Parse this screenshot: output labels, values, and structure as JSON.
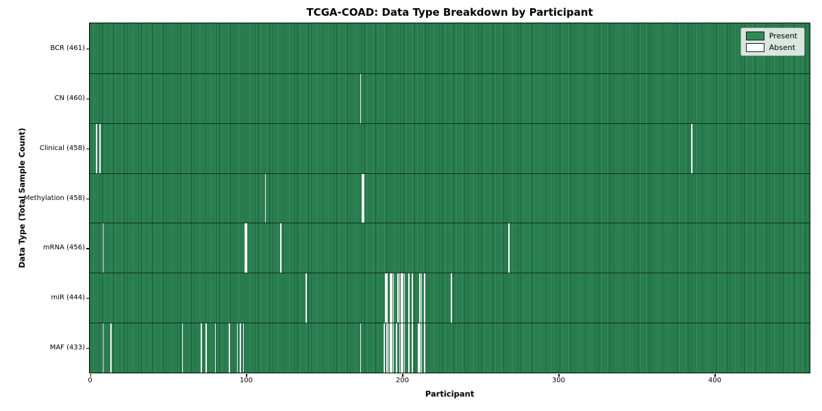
{
  "chart_data": {
    "type": "heatmap",
    "title": "TCGA-COAD: Data Type Breakdown by Participant",
    "xlabel": "Participant",
    "ylabel": "Data Type (Total Sample Count)",
    "n_participants": 461,
    "n_rows": 7,
    "x_ticks": [
      0,
      100,
      200,
      300,
      400
    ],
    "legend": [
      "Present",
      "Absent"
    ],
    "legend_position": "upper-right",
    "grid": false,
    "colors": {
      "present": "#2e8b57",
      "absent": "#ffffff",
      "bar_edge": "#1c5334",
      "row_separator": "#0f2b1c",
      "plot_border": "#000000"
    },
    "rows": [
      {
        "label": "BCR (461)",
        "data_type": "BCR",
        "present_count": 461,
        "absent_count": 0,
        "absent_participants": []
      },
      {
        "label": "CN (460)",
        "data_type": "CN",
        "present_count": 460,
        "absent_count": 1,
        "absent_participants": [
          173
        ]
      },
      {
        "label": "Clinical (458)",
        "data_type": "Clinical",
        "present_count": 458,
        "absent_count": 3,
        "absent_participants": [
          4,
          6,
          385
        ]
      },
      {
        "label": "Methylation (458)",
        "data_type": "Methylation",
        "present_count": 458,
        "absent_count": 3,
        "absent_participants": [
          112,
          174,
          175
        ]
      },
      {
        "label": "mRNA (456)",
        "data_type": "mRNA",
        "present_count": 456,
        "absent_count": 5,
        "absent_participants": [
          8,
          99,
          100,
          122,
          268
        ]
      },
      {
        "label": "miR (444)",
        "data_type": "miR",
        "present_count": 444,
        "absent_count": 17,
        "absent_participants": [
          138,
          189,
          190,
          192,
          193,
          194,
          197,
          198,
          199,
          200,
          201,
          204,
          206,
          211,
          212,
          214,
          231
        ]
      },
      {
        "label": "MAF (433)",
        "data_type": "MAF",
        "present_count": 433,
        "absent_count": 28,
        "absent_participants": [
          8,
          13,
          59,
          71,
          74,
          80,
          89,
          94,
          96,
          98,
          173,
          188,
          190,
          191,
          192,
          193,
          194,
          196,
          198,
          199,
          200,
          201,
          204,
          206,
          210,
          211,
          212,
          214
        ]
      }
    ]
  }
}
